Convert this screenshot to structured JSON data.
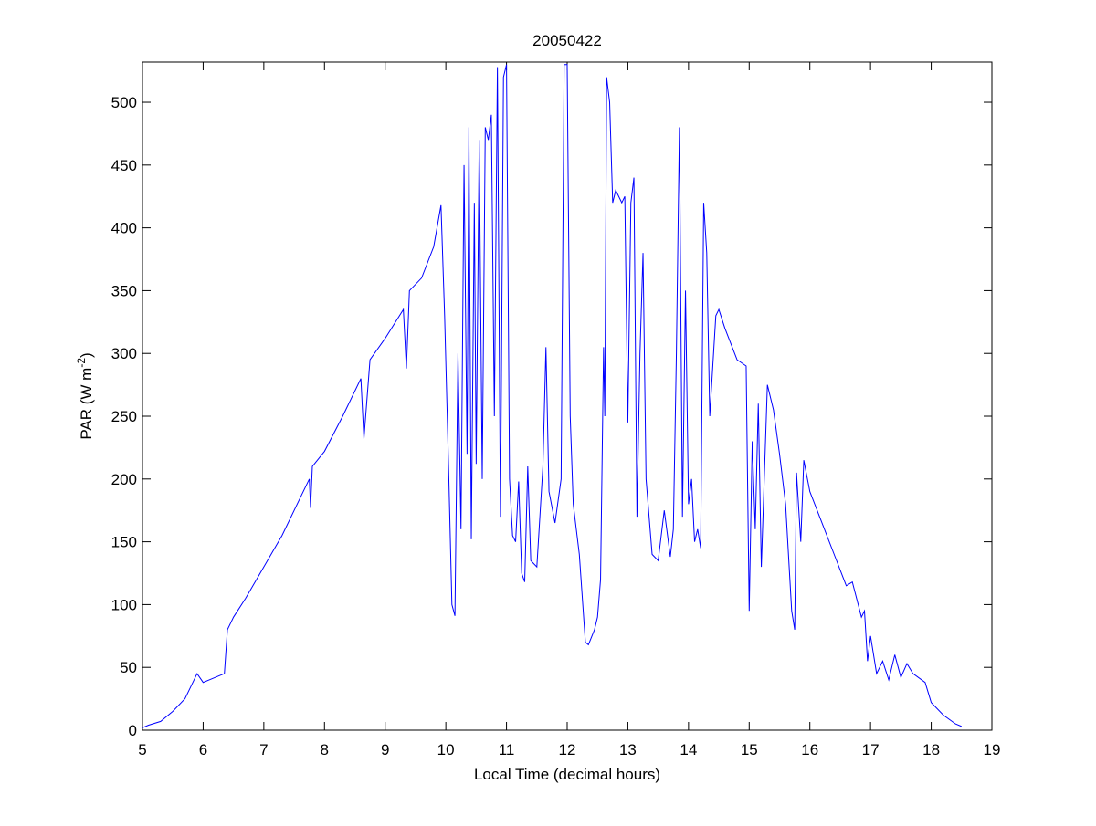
{
  "chart_data": {
    "type": "line",
    "title": "20050422",
    "xlabel": "Local Time (decimal hours)",
    "ylabel": [
      "PAR (W m",
      "-2",
      ")"
    ],
    "color": "#0000ff",
    "x": [
      5.0,
      5.1,
      5.3,
      5.5,
      5.7,
      5.8,
      5.9,
      6.0,
      6.1,
      6.2,
      6.35,
      6.4,
      6.5,
      6.7,
      7.0,
      7.3,
      7.6,
      7.75,
      7.77,
      7.8,
      8.0,
      8.3,
      8.6,
      8.65,
      8.75,
      9.0,
      9.3,
      9.35,
      9.4,
      9.6,
      9.8,
      9.92,
      9.98,
      10.05,
      10.1,
      10.15,
      10.2,
      10.25,
      10.3,
      10.35,
      10.38,
      10.42,
      10.47,
      10.5,
      10.55,
      10.6,
      10.65,
      10.7,
      10.75,
      10.8,
      10.85,
      10.9,
      10.95,
      11.0,
      11.05,
      11.1,
      11.15,
      11.2,
      11.25,
      11.3,
      11.35,
      11.4,
      11.5,
      11.6,
      11.65,
      11.7,
      11.8,
      11.9,
      11.95,
      12.0,
      12.05,
      12.1,
      12.2,
      12.3,
      12.35,
      12.45,
      12.5,
      12.55,
      12.6,
      12.62,
      12.65,
      12.7,
      12.75,
      12.8,
      12.9,
      12.95,
      13.0,
      13.05,
      13.1,
      13.15,
      13.2,
      13.25,
      13.3,
      13.35,
      13.4,
      13.5,
      13.6,
      13.7,
      13.75,
      13.8,
      13.85,
      13.9,
      13.95,
      14.0,
      14.05,
      14.1,
      14.15,
      14.2,
      14.25,
      14.3,
      14.35,
      14.45,
      14.5,
      14.6,
      14.8,
      14.95,
      15.0,
      15.05,
      15.1,
      15.15,
      15.2,
      15.3,
      15.4,
      15.5,
      15.6,
      15.7,
      15.75,
      15.78,
      15.85,
      15.9,
      16.0,
      16.2,
      16.4,
      16.6,
      16.7,
      16.85,
      16.9,
      16.95,
      17.0,
      17.1,
      17.2,
      17.3,
      17.4,
      17.5,
      17.6,
      17.7,
      17.9,
      18.0,
      18.2,
      18.4,
      18.5
    ],
    "values": [
      2,
      4,
      7,
      15,
      25,
      35,
      45,
      38,
      40,
      42,
      45,
      80,
      90,
      105,
      130,
      155,
      185,
      200,
      177,
      210,
      222,
      250,
      280,
      232,
      295,
      312,
      335,
      288,
      350,
      360,
      385,
      418,
      330,
      200,
      100,
      91,
      300,
      160,
      450,
      220,
      480,
      152,
      420,
      212,
      470,
      200,
      480,
      470,
      490,
      250,
      528,
      170,
      520,
      530,
      200,
      155,
      150,
      198,
      125,
      118,
      210,
      135,
      130,
      210,
      305,
      190,
      165,
      200,
      530,
      530,
      250,
      180,
      140,
      70,
      68,
      80,
      90,
      120,
      305,
      250,
      520,
      500,
      420,
      430,
      420,
      425,
      245,
      420,
      440,
      170,
      300,
      380,
      200,
      170,
      140,
      135,
      175,
      138,
      160,
      300,
      480,
      170,
      350,
      180,
      200,
      150,
      160,
      145,
      420,
      380,
      250,
      330,
      335,
      320,
      295,
      290,
      95,
      230,
      160,
      260,
      130,
      275,
      255,
      220,
      180,
      95,
      80,
      205,
      150,
      215,
      190,
      165,
      140,
      115,
      118,
      90,
      95,
      55,
      75,
      45,
      55,
      40,
      60,
      42,
      53,
      45,
      38,
      22,
      12,
      5,
      3
    ],
    "xlim": [
      5,
      19
    ],
    "xticks": [
      5,
      6,
      7,
      8,
      9,
      10,
      11,
      12,
      13,
      14,
      15,
      16,
      17,
      18,
      19
    ],
    "ylim": [
      0,
      532
    ],
    "yticks": [
      0,
      50,
      100,
      150,
      200,
      250,
      300,
      350,
      400,
      450,
      500
    ]
  }
}
